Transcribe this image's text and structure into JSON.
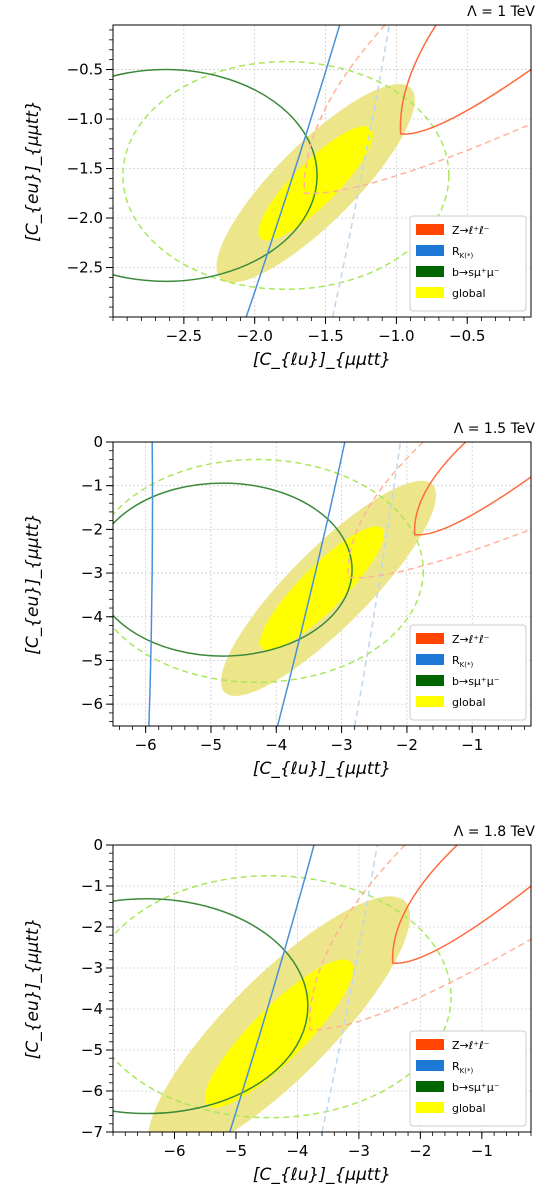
{
  "chart_data": [
    {
      "type": "contour",
      "title": "Λ = 1 TeV",
      "xlabel": "[C_{ℓu}]_{μμtt}",
      "ylabel": "[C_{eu}]_{μμtt}",
      "xlim": [
        -3.0,
        -0.05
      ],
      "ylim": [
        -3.0,
        -0.05
      ],
      "xticks": [
        -2.5,
        -2.0,
        -1.5,
        -1.0,
        -0.5
      ],
      "xtick_labels": [
        "−2.5",
        "−2.0",
        "−1.5",
        "−1.0",
        "−0.5"
      ],
      "yticks": [
        -2.5,
        -2.0,
        -1.5,
        -1.0,
        -0.5
      ],
      "ytick_labels": [
        "−2.5",
        "−2.0",
        "−1.5",
        "−1.0",
        "−0.5"
      ],
      "grid": true,
      "legend": {
        "position": "lower right",
        "entries": [
          "Z→ℓ⁺ℓ⁻",
          "R_K(*)",
          "b→sμ⁺μ⁻",
          "global"
        ]
      },
      "global_1sigma": {
        "center": [
          -1.57,
          -1.65
        ],
        "semi_axes": [
          0.55,
          0.22
        ],
        "angle_deg": 45
      },
      "global_2sigma": {
        "center": [
          -1.57,
          -1.65
        ],
        "semi_axes": [
          0.95,
          0.4
        ],
        "angle_deg": 45
      },
      "bsmumu_circle": {
        "center": [
          -2.63,
          -1.57
        ],
        "radius": 1.07
      },
      "bsmumu_2sigma_circle": {
        "center": [
          -1.78,
          -1.57
        ],
        "radius": 1.15
      },
      "RK_line": {
        "points": [
          [
            -2.06,
            -3.0
          ],
          [
            -1.4,
            -0.05
          ]
        ]
      },
      "RK_dashed_line": {
        "points": [
          [
            -1.45,
            -3.0
          ],
          [
            -1.05,
            -0.05
          ]
        ]
      },
      "Zll_curve": {
        "vertex": [
          -0.97,
          -1.15
        ],
        "upper_end": [
          -0.72,
          -0.05
        ],
        "lower_end": [
          -0.05,
          -0.5
        ]
      },
      "Zll_dashed_curve": {
        "vertex": [
          -1.65,
          -1.75
        ],
        "upper_end": [
          -1.08,
          -0.05
        ],
        "lower_end": [
          -0.05,
          -1.05
        ]
      }
    },
    {
      "type": "contour",
      "title": "Λ = 1.5 TeV",
      "xlabel": "[C_{ℓu}]_{μμtt}",
      "ylabel": "[C_{eu}]_{μμtt}",
      "xlim": [
        -6.5,
        -0.1
      ],
      "ylim": [
        -6.5,
        0
      ],
      "xticks": [
        -6,
        -5,
        -4,
        -3,
        -2,
        -1
      ],
      "xtick_labels": [
        "−6",
        "−5",
        "−4",
        "−3",
        "−2",
        "−1"
      ],
      "yticks": [
        0,
        -1,
        -2,
        -3,
        -4,
        -5,
        -6
      ],
      "ytick_labels": [
        "0",
        "−1",
        "−2",
        "−3",
        "−4",
        "−5",
        "−6"
      ],
      "grid": true,
      "legend": {
        "position": "lower right",
        "entries": [
          "Z→ℓ⁺ℓ⁻",
          "R_K(*)",
          "b→sμ⁺μ⁻",
          "global"
        ]
      },
      "global_1sigma": {
        "center": [
          -3.3,
          -3.35
        ],
        "semi_axes": [
          1.3,
          0.5
        ],
        "angle_deg": 45
      },
      "global_2sigma": {
        "center": [
          -3.2,
          -3.35
        ],
        "semi_axes": [
          2.25,
          0.9
        ],
        "angle_deg": 45
      },
      "bsmumu_circle": {
        "center": [
          -4.82,
          -2.92
        ],
        "radius": 1.98
      },
      "bsmumu_2sigma_circle": {
        "center": [
          -4.3,
          -2.95
        ],
        "radius": 2.55
      },
      "RK_line": {
        "points": [
          [
            -3.98,
            -6.5
          ],
          [
            -2.95,
            0
          ]
        ]
      },
      "RK_dashed_line": {
        "points": [
          [
            -2.8,
            -6.5
          ],
          [
            -2.1,
            0
          ]
        ]
      },
      "RK_far_line": {
        "points": [
          [
            -5.95,
            -6.5
          ],
          [
            -5.9,
            0
          ]
        ]
      },
      "Zll_curve": {
        "vertex": [
          -1.88,
          -2.12
        ],
        "upper_end": [
          -1.1,
          0
        ],
        "lower_end": [
          -0.1,
          -0.8
        ]
      },
      "Zll_dashed_curve": {
        "vertex": [
          -2.9,
          -3.1
        ],
        "upper_end": [
          -1.75,
          0
        ],
        "lower_end": [
          -0.1,
          -2.0
        ]
      }
    },
    {
      "type": "contour",
      "title": "Λ = 1.8 TeV",
      "xlabel": "[C_{ℓu}]_{μμtt}",
      "ylabel": "[C_{eu}]_{μμtt}",
      "xlim": [
        -7.0,
        -0.2
      ],
      "ylim": [
        -7.0,
        0
      ],
      "xticks": [
        -6,
        -5,
        -4,
        -3,
        -2,
        -1
      ],
      "xtick_labels": [
        "−6",
        "−5",
        "−4",
        "−3",
        "−2",
        "−1"
      ],
      "yticks": [
        0,
        -1,
        -2,
        -3,
        -4,
        -5,
        -6,
        -7
      ],
      "ytick_labels": [
        "0",
        "−1",
        "−2",
        "−3",
        "−4",
        "−5",
        "−6",
        "−7"
      ],
      "grid": true,
      "legend": {
        "position": "lower right",
        "entries": [
          "Z→ℓ⁺ℓ⁻",
          "R_K(*)",
          "b→sμ⁺μ⁻",
          "global"
        ]
      },
      "global_1sigma": {
        "center": [
          -4.3,
          -4.6
        ],
        "semi_axes": [
          1.65,
          0.65
        ],
        "angle_deg": 45
      },
      "global_2sigma": {
        "center": [
          -4.3,
          -4.45
        ],
        "semi_axes": [
          2.9,
          1.25
        ],
        "angle_deg": 45
      },
      "bsmumu_circle": {
        "center": [
          -6.45,
          -3.93
        ],
        "radius": 2.62
      },
      "bsmumu_2sigma_circle": {
        "center": [
          -4.45,
          -3.7
        ],
        "radius": 2.95
      },
      "RK_line": {
        "points": [
          [
            -5.1,
            -7.0
          ],
          [
            -3.73,
            0
          ]
        ]
      },
      "RK_dashed_line": {
        "points": [
          [
            -3.6,
            -7.0
          ],
          [
            -2.7,
            0
          ]
        ]
      },
      "Zll_curve": {
        "vertex": [
          -2.45,
          -2.88
        ],
        "upper_end": [
          -1.4,
          0
        ],
        "lower_end": [
          -0.2,
          -1.0
        ]
      },
      "Zll_dashed_curve": {
        "vertex": [
          -3.8,
          -4.5
        ],
        "upper_end": [
          -2.25,
          0
        ],
        "lower_end": [
          -0.2,
          -2.3
        ]
      }
    }
  ],
  "legend_labels": {
    "z": "Z→ℓ⁺ℓ⁻",
    "rk": "R",
    "rk_sub": "K(*)",
    "bsmumu": "b→sμ⁺μ⁻",
    "global": "global"
  },
  "colors": {
    "zll": "#ff6a3d",
    "zll_dashed": "#ffb49a",
    "zll_legend": "#ff4500",
    "rk": "#4a90d9",
    "rk_dashed": "#bcd8f0",
    "rk_legend": "#1e78d6",
    "bsmumu": "#3b8a3b",
    "bsmumu_dashed": "#a8e85a",
    "bsmumu_legend": "#006400",
    "global_1sigma": "#ffff00",
    "global_2sigma": "#ede58a",
    "grid": "#d0d0d0"
  }
}
